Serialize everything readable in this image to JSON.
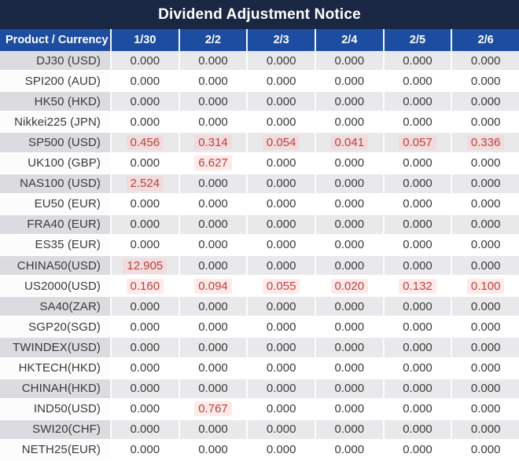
{
  "title": "Dividend Adjustment Notice",
  "colors": {
    "title_bg": "#1A2742",
    "header_bg": "#1C4DA0",
    "row_gray": "#E9E9EC",
    "row_white": "#FFFFFF",
    "text": "#3A3A3A",
    "negative_red": "#B5443C"
  },
  "chart_data": {
    "type": "table",
    "title": "Dividend Adjustment Notice",
    "columns": [
      "Product / Currency",
      "1/30",
      "2/2",
      "2/3",
      "2/4",
      "2/5",
      "2/6"
    ],
    "rows": [
      {
        "product": "DJ30 (USD)",
        "values": [
          "0.000",
          "0.000",
          "0.000",
          "0.000",
          "0.000",
          "0.000"
        ],
        "red": [
          false,
          false,
          false,
          false,
          false,
          false
        ]
      },
      {
        "product": "SPI200 (AUD)",
        "values": [
          "0.000",
          "0.000",
          "0.000",
          "0.000",
          "0.000",
          "0.000"
        ],
        "red": [
          false,
          false,
          false,
          false,
          false,
          false
        ]
      },
      {
        "product": "HK50 (HKD)",
        "values": [
          "0.000",
          "0.000",
          "0.000",
          "0.000",
          "0.000",
          "0.000"
        ],
        "red": [
          false,
          false,
          false,
          false,
          false,
          false
        ]
      },
      {
        "product": "Nikkei225 (JPN)",
        "values": [
          "0.000",
          "0.000",
          "0.000",
          "0.000",
          "0.000",
          "0.000"
        ],
        "red": [
          false,
          false,
          false,
          false,
          false,
          false
        ]
      },
      {
        "product": "SP500 (USD)",
        "values": [
          "0.456",
          "0.314",
          "0.054",
          "0.041",
          "0.057",
          "0.336"
        ],
        "red": [
          true,
          true,
          true,
          true,
          true,
          true
        ]
      },
      {
        "product": "UK100 (GBP)",
        "values": [
          "0.000",
          "6.627",
          "0.000",
          "0.000",
          "0.000",
          "0.000"
        ],
        "red": [
          false,
          true,
          false,
          false,
          false,
          false
        ]
      },
      {
        "product": "NAS100 (USD)",
        "values": [
          "2.524",
          "0.000",
          "0.000",
          "0.000",
          "0.000",
          "0.000"
        ],
        "red": [
          true,
          false,
          false,
          false,
          false,
          false
        ]
      },
      {
        "product": "EU50 (EUR)",
        "values": [
          "0.000",
          "0.000",
          "0.000",
          "0.000",
          "0.000",
          "0.000"
        ],
        "red": [
          false,
          false,
          false,
          false,
          false,
          false
        ]
      },
      {
        "product": "FRA40 (EUR)",
        "values": [
          "0.000",
          "0.000",
          "0.000",
          "0.000",
          "0.000",
          "0.000"
        ],
        "red": [
          false,
          false,
          false,
          false,
          false,
          false
        ]
      },
      {
        "product": "ES35 (EUR)",
        "values": [
          "0.000",
          "0.000",
          "0.000",
          "0.000",
          "0.000",
          "0.000"
        ],
        "red": [
          false,
          false,
          false,
          false,
          false,
          false
        ]
      },
      {
        "product": "CHINA50(USD)",
        "values": [
          "12.905",
          "0.000",
          "0.000",
          "0.000",
          "0.000",
          "0.000"
        ],
        "red": [
          true,
          false,
          false,
          false,
          false,
          false
        ]
      },
      {
        "product": "US2000(USD)",
        "values": [
          "0.160",
          "0.094",
          "0.055",
          "0.020",
          "0.132",
          "0.100"
        ],
        "red": [
          true,
          true,
          true,
          true,
          true,
          true
        ]
      },
      {
        "product": "SA40(ZAR)",
        "values": [
          "0.000",
          "0.000",
          "0.000",
          "0.000",
          "0.000",
          "0.000"
        ],
        "red": [
          false,
          false,
          false,
          false,
          false,
          false
        ]
      },
      {
        "product": "SGP20(SGD)",
        "values": [
          "0.000",
          "0.000",
          "0.000",
          "0.000",
          "0.000",
          "0.000"
        ],
        "red": [
          false,
          false,
          false,
          false,
          false,
          false
        ]
      },
      {
        "product": "TWINDEX(USD)",
        "values": [
          "0.000",
          "0.000",
          "0.000",
          "0.000",
          "0.000",
          "0.000"
        ],
        "red": [
          false,
          false,
          false,
          false,
          false,
          false
        ]
      },
      {
        "product": "HKTECH(HKD)",
        "values": [
          "0.000",
          "0.000",
          "0.000",
          "0.000",
          "0.000",
          "0.000"
        ],
        "red": [
          false,
          false,
          false,
          false,
          false,
          false
        ]
      },
      {
        "product": "CHINAH(HKD)",
        "values": [
          "0.000",
          "0.000",
          "0.000",
          "0.000",
          "0.000",
          "0.000"
        ],
        "red": [
          false,
          false,
          false,
          false,
          false,
          false
        ]
      },
      {
        "product": "IND50(USD)",
        "values": [
          "0.000",
          "0.767",
          "0.000",
          "0.000",
          "0.000",
          "0.000"
        ],
        "red": [
          false,
          true,
          false,
          false,
          false,
          false
        ]
      },
      {
        "product": "SWI20(CHF)",
        "values": [
          "0.000",
          "0.000",
          "0.000",
          "0.000",
          "0.000",
          "0.000"
        ],
        "red": [
          false,
          false,
          false,
          false,
          false,
          false
        ]
      },
      {
        "product": "NETH25(EUR)",
        "values": [
          "0.000",
          "0.000",
          "0.000",
          "0.000",
          "0.000",
          "0.000"
        ],
        "red": [
          false,
          false,
          false,
          false,
          false,
          false
        ]
      }
    ]
  }
}
